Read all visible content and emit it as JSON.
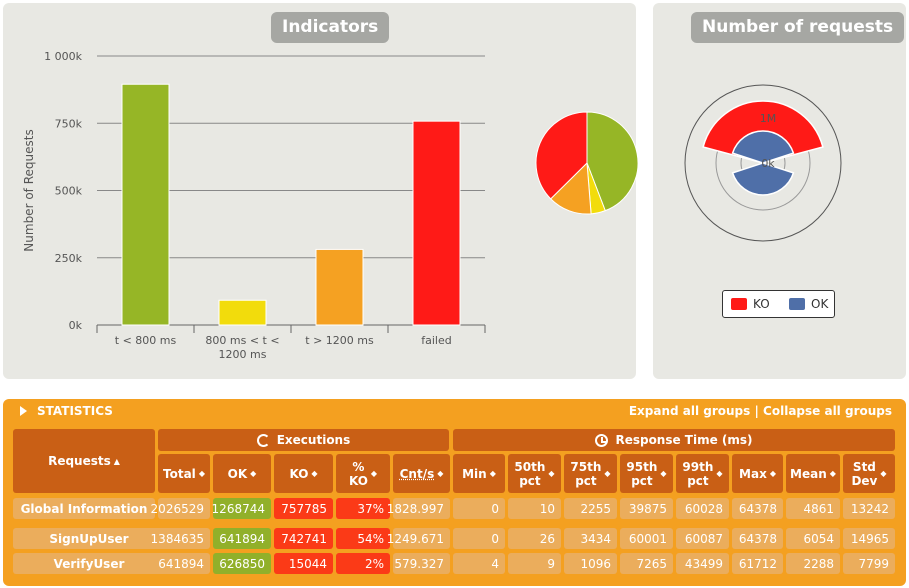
{
  "indicators": {
    "title": "Indicators"
  },
  "requests_panel": {
    "title": "Number of requests",
    "ring_labels": [
      "1M",
      "0k"
    ],
    "legend": [
      {
        "label": "KO",
        "color": "#ff1a17"
      },
      {
        "label": "OK",
        "color": "#4f6fa8"
      }
    ]
  },
  "chart_data": [
    {
      "type": "bar",
      "title": "Indicators",
      "ylabel": "Number of Requests",
      "categories": [
        "t < 800 ms",
        "800 ms < t < 1200 ms",
        "t > 1200 ms",
        "failed"
      ],
      "category_lines": [
        [
          "t < 800 ms"
        ],
        [
          "800 ms < t <",
          "1200 ms"
        ],
        [
          "t > 1200 ms"
        ],
        [
          "failed"
        ]
      ],
      "values": [
        895000,
        92000,
        281000,
        757785
      ],
      "colors": [
        "#96b626",
        "#f2dc0c",
        "#f5a122",
        "#ff1a17"
      ],
      "ylim": [
        0,
        1000000
      ],
      "yticks": [
        "0k",
        "250k",
        "500k",
        "750k",
        "1 000k"
      ],
      "grid": true
    },
    {
      "type": "pie",
      "values": [
        895000,
        92000,
        281000,
        757785
      ],
      "colors": [
        "#96b626",
        "#f2dc0c",
        "#f5a122",
        "#ff1a17"
      ]
    }
  ],
  "statistics": {
    "title": "STATISTICS",
    "expand_label": "Expand all groups",
    "separator": " | ",
    "collapse_label": "Collapse all groups",
    "requests_header": "Requests",
    "executions_header": "Executions",
    "response_header": "Response Time (ms)",
    "columns": [
      "Total",
      "OK",
      "KO",
      "% KO",
      "Cnt/s",
      "Min",
      "50th pct",
      "75th pct",
      "95th pct",
      "99th pct",
      "Max",
      "Mean",
      "Std Dev"
    ],
    "rows": [
      {
        "name": "Global Information",
        "values": [
          "2026529",
          "1268744",
          "757785",
          "37%",
          "1828.997",
          "0",
          "10",
          "2255",
          "39875",
          "60028",
          "64378",
          "4861",
          "13242"
        ]
      },
      {
        "name": "SignUpUser",
        "values": [
          "1384635",
          "641894",
          "742741",
          "54%",
          "1249.671",
          "0",
          "26",
          "3434",
          "60001",
          "60087",
          "64378",
          "6054",
          "14965"
        ]
      },
      {
        "name": "VerifyUser",
        "values": [
          "641894",
          "626850",
          "15044",
          "2%",
          "579.327",
          "4",
          "9",
          "1096",
          "7265",
          "43499",
          "61712",
          "2288",
          "7799"
        ]
      }
    ]
  }
}
